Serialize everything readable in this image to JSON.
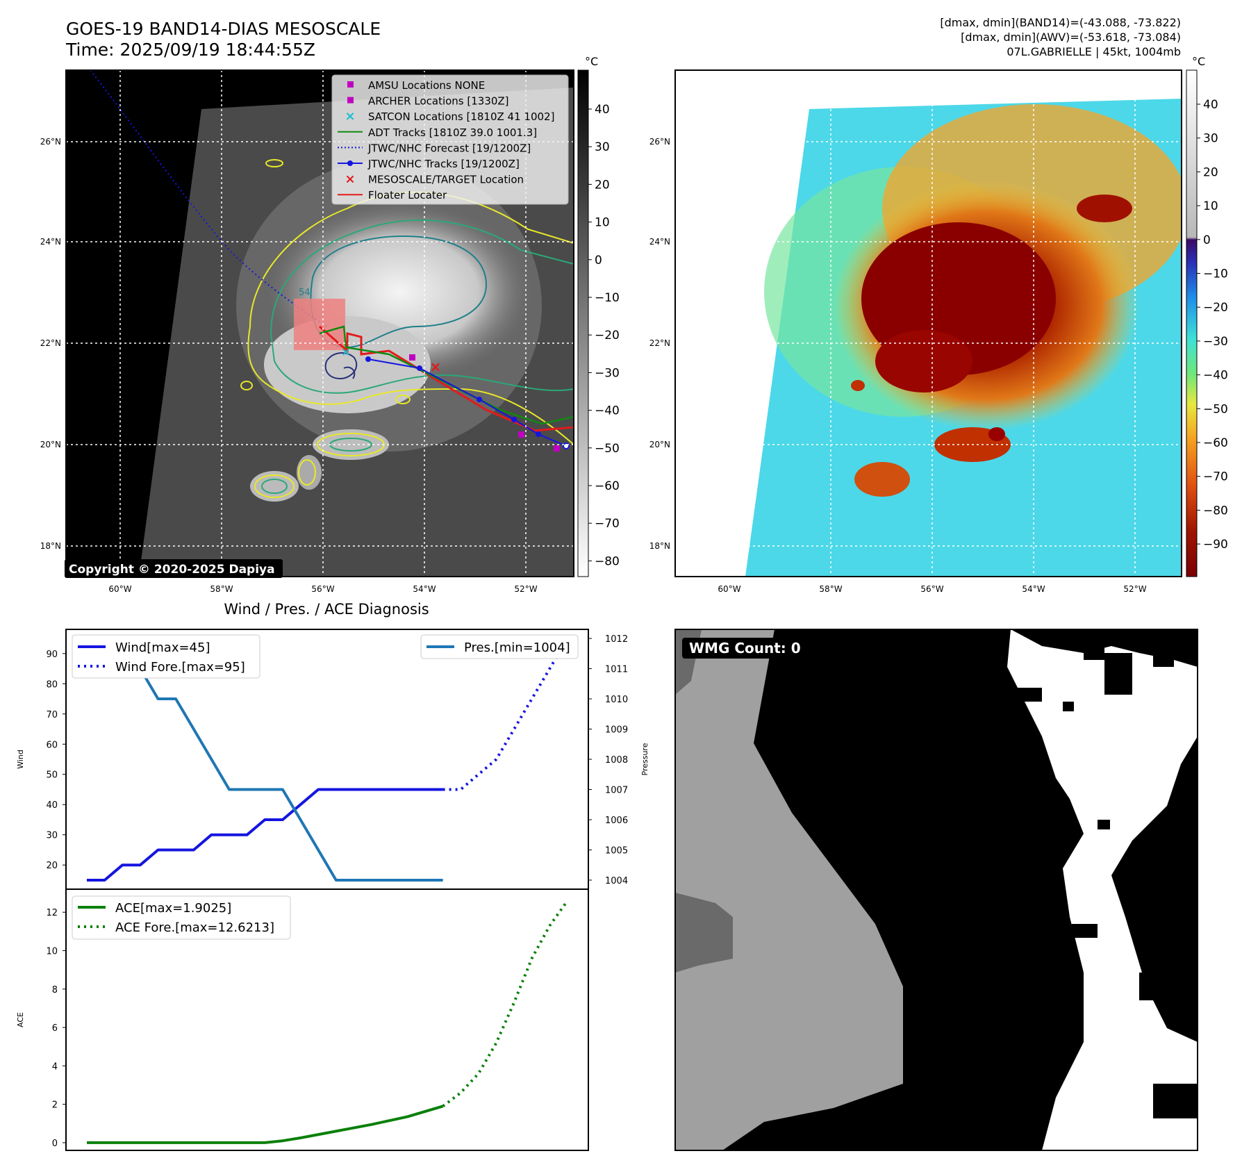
{
  "header": {
    "title_line1": "GOES-19 BAND14-DIAS MESOSCALE",
    "title_line2": "Time: 2025/09/19 18:44:55Z",
    "info_line1": "[dmax, dmin](BAND14)=(-43.088, -73.822)",
    "info_line2": "[dmax, dmin](AWV)=(-53.618, -73.084)",
    "info_line3": "07L.GABRIELLE | 45kt, 1004mb"
  },
  "colors": {
    "wind": "#1515e0",
    "pressure": "#1f77b4",
    "ace": "#0a800a",
    "adt": "#108a10",
    "floater": "#e31a1c",
    "amsu": "#c000c0",
    "satcon": "#17becf",
    "target_box": "#f08080",
    "contour_yellow": "#e8e82a",
    "contour_green": "#2aa878",
    "contour_teal": "#1f7f8a",
    "contour_navy": "#28307a"
  },
  "map_axes": {
    "lat_ticks": [
      "18°N",
      "20°N",
      "22°N",
      "24°N",
      "26°N"
    ],
    "lon_ticks": [
      "60°W",
      "58°W",
      "56°W",
      "54°W",
      "52°W"
    ],
    "lon_ticks_right": [
      "60°W",
      "58°W",
      "56°W",
      "54°W",
      "52°W"
    ]
  },
  "ir_panel": {
    "colorbar_unit": "°C",
    "colorbar_ticks": [
      "40",
      "30",
      "20",
      "10",
      "0",
      "−10",
      "−20",
      "−30",
      "−40",
      "−50",
      "−60",
      "−70",
      "−80"
    ],
    "copyright": "Copyright © 2020-2025 Dapiya",
    "legend": [
      {
        "label": "AMSU Locations NONE",
        "icon": "square-marker",
        "color": "#c000c0"
      },
      {
        "label": "ARCHER Locations [1330Z]",
        "icon": "square-marker",
        "color": "#c000c0"
      },
      {
        "label": "SATCON Locations [1810Z 41 1002]",
        "icon": "x-marker",
        "color": "#17becf"
      },
      {
        "label": "ADT Tracks [1810Z 39.0 1001.3]",
        "icon": "solid-line",
        "color": "#108a10"
      },
      {
        "label": "JTWC/NHC Forecast [19/1200Z]",
        "icon": "dotted-line",
        "color": "#1515e0"
      },
      {
        "label": "JTWC/NHC Tracks [19/1200Z]",
        "icon": "dot-line",
        "color": "#1515e0"
      },
      {
        "label": "MESOSCALE/TARGET Location",
        "icon": "x-marker",
        "color": "#e31a1c"
      },
      {
        "label": "Floater Locater",
        "icon": "solid-line",
        "color": "#e31a1c"
      }
    ],
    "contour_label": "54"
  },
  "color_panel": {
    "colorbar_unit": "°C",
    "colorbar_ticks": [
      "40",
      "30",
      "20",
      "10",
      "0",
      "−10",
      "−20",
      "−30",
      "−40",
      "−50",
      "−60",
      "−70",
      "−80",
      "−90"
    ]
  },
  "wmg_panel": {
    "label": "WMG Count: 0"
  },
  "chart_data": [
    {
      "type": "line",
      "title": "Wind / Pres. / ACE Diagnosis",
      "ylabel": "Wind",
      "y2label": "Pressure",
      "ylim": [
        12,
        98
      ],
      "y2lim": [
        1003.7,
        1012.3
      ],
      "yticks": [
        20,
        30,
        40,
        50,
        60,
        70,
        80,
        90
      ],
      "y2ticks": [
        1004,
        1005,
        1006,
        1007,
        1008,
        1009,
        1010,
        1011,
        1012
      ],
      "xlim": [
        0,
        27
      ],
      "series": [
        {
          "name": "Wind[max=45]",
          "style": "solid",
          "x": [
            0,
            1,
            2,
            3,
            4,
            5,
            6,
            7,
            8,
            9,
            10,
            11,
            12,
            13,
            14,
            15,
            16,
            17,
            18,
            19,
            20
          ],
          "y": [
            15,
            15,
            20,
            20,
            25,
            25,
            25,
            30,
            30,
            30,
            35,
            35,
            40,
            45,
            45,
            45,
            45,
            45,
            45,
            45,
            45
          ]
        },
        {
          "name": "Wind Fore.[max=95]",
          "style": "dotted",
          "x": [
            20,
            21,
            22,
            23,
            24,
            25,
            26,
            27
          ],
          "y": [
            45,
            45,
            50,
            55,
            65,
            75,
            85,
            95
          ]
        },
        {
          "name": "Pres.[min=1004]",
          "axis": "right",
          "x": [
            0,
            1,
            2,
            3,
            4,
            5,
            6,
            7,
            8,
            9,
            10,
            11,
            12,
            13,
            14,
            15,
            16,
            17,
            18,
            19,
            20
          ],
          "y": [
            1012,
            1012,
            1011,
            1011,
            1010,
            1010,
            1009,
            1008,
            1007,
            1007,
            1007,
            1007,
            1006,
            1005,
            1004,
            1004,
            1004,
            1004,
            1004,
            1004,
            1004
          ]
        }
      ]
    },
    {
      "type": "line",
      "ylabel": "ACE",
      "ylim": [
        -0.4,
        13.2
      ],
      "yticks": [
        0,
        2,
        4,
        6,
        8,
        10,
        12
      ],
      "xlim": [
        0,
        27
      ],
      "series": [
        {
          "name": "ACE[max=1.9025]",
          "style": "solid",
          "x": [
            0,
            2,
            4,
            6,
            8,
            10,
            11,
            12,
            14,
            16,
            18,
            20
          ],
          "y": [
            0,
            0,
            0,
            0,
            0,
            0,
            0.1,
            0.25,
            0.6,
            0.95,
            1.35,
            1.9
          ]
        },
        {
          "name": "ACE Fore.[max=12.6213]",
          "style": "dotted",
          "x": [
            20,
            21,
            22,
            23,
            24,
            25,
            26,
            27
          ],
          "y": [
            1.9,
            2.6,
            3.6,
            5.2,
            7.3,
            9.6,
            11.3,
            12.6
          ]
        }
      ]
    }
  ]
}
